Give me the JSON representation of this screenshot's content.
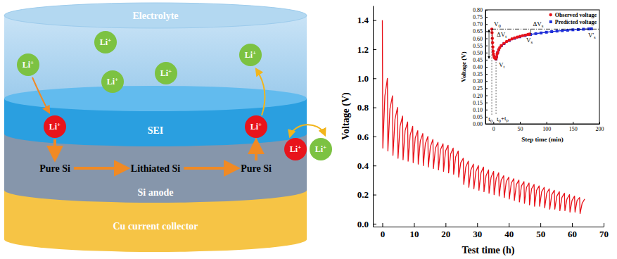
{
  "diagram": {
    "layers": [
      "Electrolyte",
      "SEI",
      "Si anode",
      "Cu current collector"
    ],
    "process": [
      "Pure Si",
      "Lithiated Si",
      "Pure Si"
    ],
    "ions": [
      {
        "label": "Li+",
        "color": "#7cc242"
      },
      {
        "label": "Li+",
        "color": "#7cc242"
      },
      {
        "label": "Li+",
        "color": "#7cc242"
      },
      {
        "label": "Li+",
        "color": "#7cc242"
      },
      {
        "label": "Li+",
        "color": "#7cc242"
      },
      {
        "label": "Li+",
        "color": "#e8141b"
      },
      {
        "label": "Li+",
        "color": "#e8141b"
      },
      {
        "label": "Li+",
        "color": "#e8141b"
      },
      {
        "label": "Li+",
        "color": "#7cc242"
      }
    ]
  },
  "chart_data": [
    {
      "type": "line",
      "x_label": "Test time (h)",
      "y_label": "Voltage (V)",
      "color": "#e8121a",
      "x": [
        0,
        0.15,
        0.8,
        1.6,
        1.75,
        2.4,
        3.2,
        3.35,
        4,
        4.8,
        4.95,
        5.6,
        6.4,
        6.55,
        7.2,
        8,
        8.15,
        8.8,
        9.6,
        9.75,
        10.4,
        11.2,
        11.35,
        12,
        12.8,
        12.95,
        13.6,
        14.4,
        14.55,
        15.2,
        16,
        16.15,
        16.8,
        17.6,
        17.75,
        18.4,
        19.2,
        19.35,
        20,
        20.8,
        20.95,
        21.6,
        22.4,
        22.55,
        23.2,
        24,
        24.15,
        24.8,
        25.6,
        25.75,
        26.4,
        27.2,
        27.35,
        28,
        28.8,
        28.95,
        29.6,
        30.4,
        30.55,
        31.2,
        32,
        32.15,
        32.8,
        33.6,
        33.75,
        34.4,
        35.2,
        35.35,
        36,
        36.8,
        36.95,
        37.6,
        38.4,
        38.55,
        39.2,
        40,
        40.15,
        40.8,
        41.6,
        41.75,
        42.4,
        43.2,
        43.35,
        44,
        44.8,
        44.95,
        45.6,
        46.4,
        46.55,
        47.2,
        48,
        48.15,
        48.8,
        49.6,
        49.75,
        50.4,
        51.2,
        51.35,
        52,
        52.8,
        52.95,
        53.6,
        54.4,
        54.55,
        55.2,
        56,
        56.15,
        56.8,
        57.6,
        57.75,
        58.4,
        59.2,
        59.35,
        60,
        60.8,
        60.95,
        61.6,
        62.4,
        62.55,
        63.2,
        64
      ],
      "values": [
        1.4,
        0.52,
        0.88,
        1.0,
        0.5,
        0.79,
        0.88,
        0.47,
        0.72,
        0.8,
        0.45,
        0.67,
        0.74,
        0.44,
        0.64,
        0.7,
        0.43,
        0.61,
        0.67,
        0.42,
        0.59,
        0.64,
        0.41,
        0.57,
        0.62,
        0.4,
        0.55,
        0.6,
        0.39,
        0.53,
        0.58,
        0.38,
        0.52,
        0.56,
        0.37,
        0.51,
        0.55,
        0.36,
        0.5,
        0.54,
        0.35,
        0.48,
        0.52,
        0.34,
        0.46,
        0.5,
        0.32,
        0.42,
        0.45,
        0.27,
        0.39,
        0.43,
        0.25,
        0.37,
        0.41,
        0.24,
        0.36,
        0.4,
        0.23,
        0.35,
        0.39,
        0.22,
        0.33,
        0.37,
        0.21,
        0.32,
        0.36,
        0.2,
        0.31,
        0.35,
        0.19,
        0.3,
        0.33,
        0.18,
        0.29,
        0.32,
        0.17,
        0.28,
        0.31,
        0.16,
        0.27,
        0.3,
        0.15,
        0.26,
        0.29,
        0.14,
        0.25,
        0.28,
        0.13,
        0.24,
        0.27,
        0.12,
        0.23,
        0.26,
        0.12,
        0.22,
        0.25,
        0.11,
        0.21,
        0.24,
        0.1,
        0.2,
        0.23,
        0.1,
        0.19,
        0.22,
        0.09,
        0.18,
        0.21,
        0.09,
        0.17,
        0.2,
        0.08,
        0.16,
        0.19,
        0.08,
        0.16,
        0.18,
        0.07,
        0.14,
        0.17
      ],
      "xlim": [
        -3,
        70
      ],
      "xticks": [
        0,
        10,
        20,
        30,
        40,
        50,
        60,
        70
      ],
      "ylim": [
        -0.02,
        1.5
      ],
      "yticks": [
        {
          "value": 0,
          "label": "0.0"
        },
        {
          "value": 0.2,
          "label": "0.2"
        },
        {
          "value": 0.4,
          "label": "0.4"
        },
        {
          "value": 0.6,
          "label": "0.6"
        },
        {
          "value": 0.8,
          "label": "0.8"
        },
        {
          "value": 1,
          "label": "1.0"
        },
        {
          "value": 1.2,
          "label": "1.2"
        },
        {
          "value": 1.4,
          "label": "1.4"
        }
      ]
    },
    {
      "type": "scatter",
      "x_label": "Step time (min)",
      "y_label": "Voltage (V)",
      "legend": "upper right",
      "series": [
        {
          "name": "Observed voltage",
          "color": "#e8121a",
          "marker": "circle",
          "line_style": "solid",
          "x": [
            -3,
            -2.5,
            -2,
            -1.5,
            -1,
            -0.5,
            0,
            1,
            2,
            3,
            5,
            6,
            7,
            8,
            10,
            12,
            15,
            20,
            25,
            30,
            35,
            40,
            45,
            50,
            55,
            60,
            65,
            68
          ],
          "values": [
            0.665,
            0.64,
            0.6,
            0.57,
            0.54,
            0.51,
            0.49,
            0.475,
            0.465,
            0.46,
            0.455,
            0.47,
            0.49,
            0.5,
            0.52,
            0.535,
            0.55,
            0.565,
            0.578,
            0.588,
            0.596,
            0.603,
            0.609,
            0.614,
            0.619,
            0.623,
            0.627,
            0.63
          ]
        },
        {
          "name": "Predicted voltage",
          "color": "#1f2fd8",
          "marker": "square",
          "line_style": "solid",
          "x": [
            5,
            6,
            8,
            10,
            15,
            20,
            30,
            40,
            50,
            60,
            70,
            80,
            90,
            100,
            110,
            120,
            130,
            140,
            150,
            160,
            170,
            180,
            185
          ],
          "values": [
            0.455,
            0.47,
            0.5,
            0.52,
            0.548,
            0.563,
            0.585,
            0.6,
            0.611,
            0.62,
            0.627,
            0.633,
            0.638,
            0.643,
            0.647,
            0.651,
            0.654,
            0.657,
            0.66,
            0.662,
            0.664,
            0.666,
            0.667
          ]
        }
      ],
      "annotations": [
        "V0",
        "Vt",
        "Vs",
        "V's",
        "ΔVt",
        "ΔVs",
        "t0",
        "t0+tp"
      ],
      "xlim": [
        -15,
        200
      ],
      "xticks": [
        0,
        50,
        100,
        150,
        200
      ],
      "ylim": [
        0,
        0.8
      ],
      "yticks": [
        {
          "value": 0,
          "label": "0.00"
        },
        {
          "value": 0.05,
          "label": "0.05"
        },
        {
          "value": 0.1,
          "label": "0.10"
        },
        {
          "value": 0.15,
          "label": "0.15"
        },
        {
          "value": 0.2,
          "label": "0.20"
        },
        {
          "value": 0.25,
          "label": "0.25"
        },
        {
          "value": 0.3,
          "label": "0.30"
        },
        {
          "value": 0.35,
          "label": "0.35"
        },
        {
          "value": 0.4,
          "label": "0.40"
        },
        {
          "value": 0.45,
          "label": "0.45"
        },
        {
          "value": 0.5,
          "label": "0.50"
        },
        {
          "value": 0.55,
          "label": "0.55"
        },
        {
          "value": 0.6,
          "label": "0.60"
        },
        {
          "value": 0.65,
          "label": "0.65"
        },
        {
          "value": 0.7,
          "label": "0.70"
        },
        {
          "value": 0.75,
          "label": "0.75"
        },
        {
          "value": 0.8,
          "label": "0.80"
        }
      ]
    }
  ]
}
